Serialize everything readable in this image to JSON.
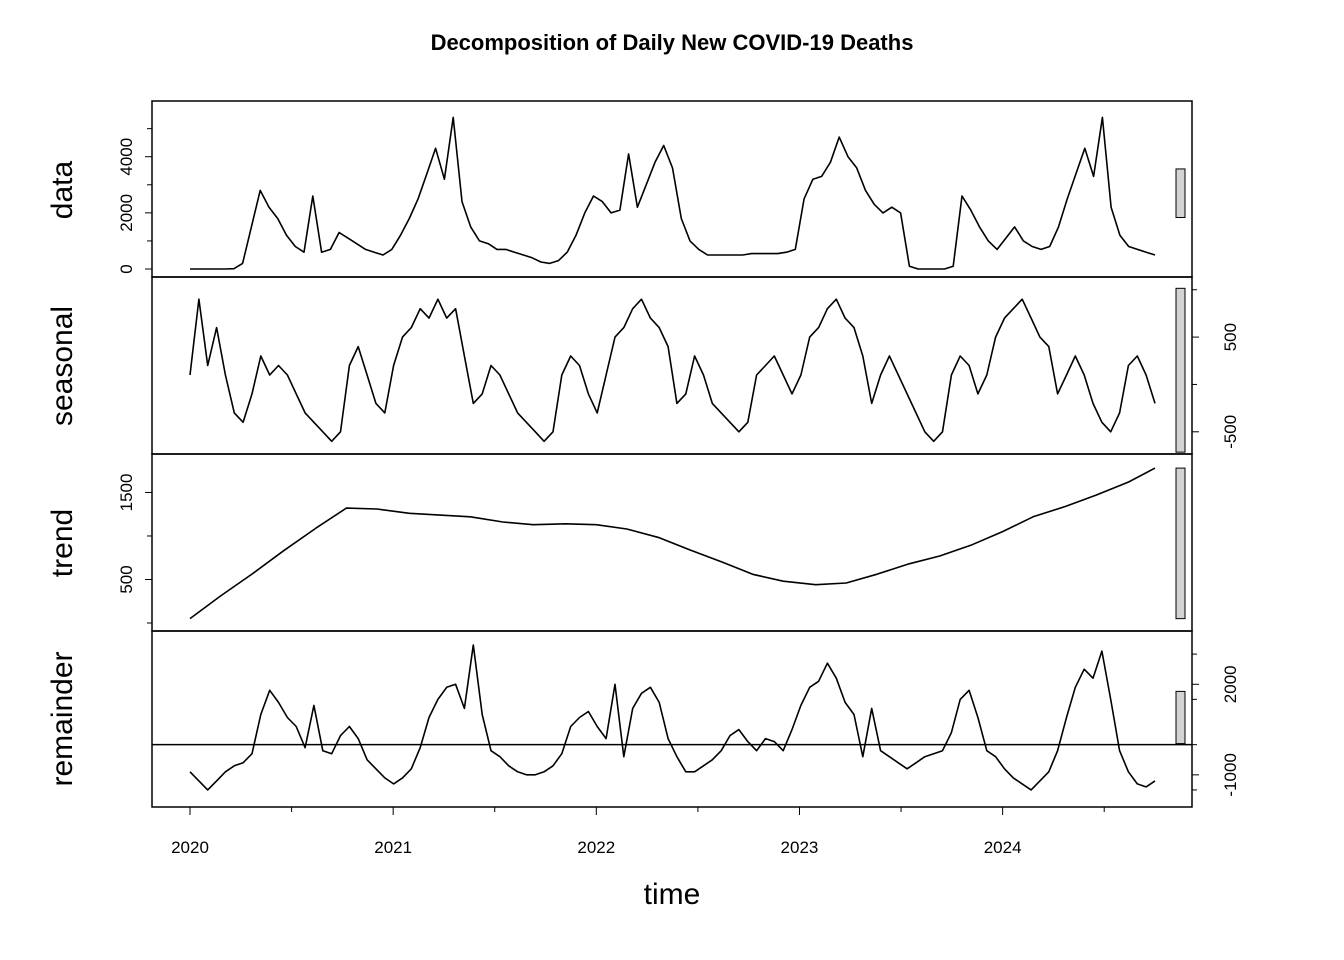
{
  "chart_data": {
    "type": "line",
    "title": "Decomposition of Daily New COVID-19 Deaths",
    "xlabel": "time",
    "xlim": [
      2020.0,
      2024.75
    ],
    "x_ticks": [
      2020,
      2021,
      2022,
      2023,
      2024
    ],
    "x_tick_labels": [
      "2020",
      "2021",
      "2022",
      "2023",
      "2024"
    ],
    "range_bars": true,
    "panels": [
      {
        "name": "data",
        "ylim": [
          0,
          5700
        ],
        "y_ticks": [
          0,
          2000,
          4000
        ],
        "y_tick_labels": [
          "0",
          "2000",
          "4000"
        ],
        "axis_side": "left",
        "zero_line": false,
        "values": [
          0,
          0,
          0,
          0,
          0,
          10,
          200,
          1500,
          2800,
          2200,
          1800,
          1200,
          800,
          600,
          2600,
          600,
          700,
          1300,
          1100,
          900,
          700,
          600,
          500,
          700,
          1200,
          1800,
          2500,
          3400,
          4300,
          3200,
          5400,
          2400,
          1500,
          1000,
          900,
          700,
          700,
          600,
          500,
          400,
          250,
          200,
          300,
          600,
          1200,
          2000,
          2600,
          2400,
          2000,
          2100,
          4100,
          2200,
          3000,
          3800,
          4400,
          3600,
          1800,
          1000,
          700,
          500,
          500,
          500,
          500,
          500,
          550,
          550,
          550,
          550,
          600,
          700,
          2500,
          3200,
          3300,
          3800,
          4700,
          4000,
          3600,
          2800,
          2300,
          2000,
          2200,
          2000,
          100,
          0,
          0,
          0,
          0,
          100,
          2600,
          2100,
          1500,
          1000,
          700,
          1100,
          1500,
          1000,
          800,
          700,
          800,
          1500,
          2500,
          3400,
          4300,
          3300,
          5400,
          2200,
          1200,
          800,
          700,
          600,
          500
        ]
      },
      {
        "name": "seasonal",
        "ylim": [
          -650,
          1050
        ],
        "y_ticks": [
          -500,
          500
        ],
        "y_tick_labels": [
          "-500",
          "500"
        ],
        "axis_side": "right",
        "zero_line": false,
        "values": [
          100,
          900,
          200,
          600,
          100,
          -300,
          -400,
          -100,
          300,
          100,
          200,
          100,
          -100,
          -300,
          -400,
          -500,
          -600,
          -500,
          200,
          400,
          100,
          -200,
          -300,
          200,
          500,
          600,
          800,
          700,
          900,
          700,
          800,
          300,
          -200,
          -100,
          200,
          100,
          -100,
          -300,
          -400,
          -500,
          -600,
          -500,
          100,
          300,
          200,
          -100,
          -300,
          100,
          500,
          600,
          800,
          900,
          700,
          600,
          400,
          -200,
          -100,
          300,
          100,
          -200,
          -300,
          -400,
          -500,
          -400,
          100,
          200,
          300,
          100,
          -100,
          100,
          500,
          600,
          800,
          900,
          700,
          600,
          300,
          -200,
          100,
          300,
          100,
          -100,
          -300,
          -500,
          -600,
          -500,
          100,
          300,
          200,
          -100,
          100,
          500,
          700,
          800,
          900,
          700,
          500,
          400,
          -100,
          100,
          300,
          100,
          -200,
          -400,
          -500,
          -300,
          200,
          300,
          100,
          -200
        ]
      },
      {
        "name": "trend",
        "ylim": [
          0,
          1850
        ],
        "y_ticks": [
          500,
          1500
        ],
        "y_tick_labels": [
          "500",
          "1500"
        ],
        "axis_side": "left",
        "zero_line": false,
        "x": [
          2020.0,
          2020.15,
          2020.31,
          2020.46,
          2020.62,
          2020.77,
          2020.92,
          2021.08,
          2021.23,
          2021.38,
          2021.54,
          2021.69,
          2021.85,
          2022.0,
          2022.15,
          2022.31,
          2022.46,
          2022.62,
          2022.77,
          2022.92,
          2023.08,
          2023.23,
          2023.38,
          2023.54,
          2023.69,
          2023.85,
          2024.0,
          2024.15,
          2024.31,
          2024.46,
          2024.62,
          2024.75
        ],
        "values": [
          50,
          310,
          570,
          830,
          1090,
          1320,
          1310,
          1260,
          1240,
          1220,
          1160,
          1130,
          1140,
          1130,
          1080,
          980,
          840,
          700,
          560,
          480,
          440,
          460,
          560,
          680,
          770,
          900,
          1050,
          1220,
          1340,
          1470,
          1620,
          1780
        ]
      },
      {
        "name": "remainder",
        "ylim": [
          -1800,
          3500
        ],
        "y_ticks": [
          -1000,
          2000
        ],
        "y_tick_labels": [
          "-1000",
          "2000"
        ],
        "axis_side": "right",
        "zero_line": true,
        "values": [
          -900,
          -1200,
          -1500,
          -1200,
          -900,
          -700,
          -600,
          -300,
          1000,
          1800,
          1400,
          900,
          600,
          -100,
          1300,
          -200,
          -300,
          300,
          600,
          200,
          -500,
          -800,
          -1100,
          -1300,
          -1100,
          -800,
          -100,
          900,
          1500,
          1900,
          2000,
          1200,
          3300,
          1000,
          -200,
          -400,
          -700,
          -900,
          -1000,
          -1000,
          -900,
          -700,
          -300,
          600,
          900,
          1100,
          600,
          200,
          2000,
          -400,
          1200,
          1700,
          1900,
          1400,
          200,
          -400,
          -900,
          -900,
          -700,
          -500,
          -200,
          300,
          500,
          100,
          -200,
          200,
          100,
          -200,
          500,
          1300,
          1900,
          2100,
          2700,
          2200,
          1400,
          1000,
          -400,
          1200,
          -200,
          -400,
          -600,
          -800,
          -600,
          -400,
          -300,
          -200,
          400,
          1500,
          1800,
          900,
          -200,
          -400,
          -800,
          -1100,
          -1300,
          -1500,
          -1200,
          -900,
          -200,
          900,
          1900,
          2500,
          2200,
          3100,
          1500,
          -200,
          -900,
          -1300,
          -1400,
          -1200
        ]
      }
    ]
  }
}
